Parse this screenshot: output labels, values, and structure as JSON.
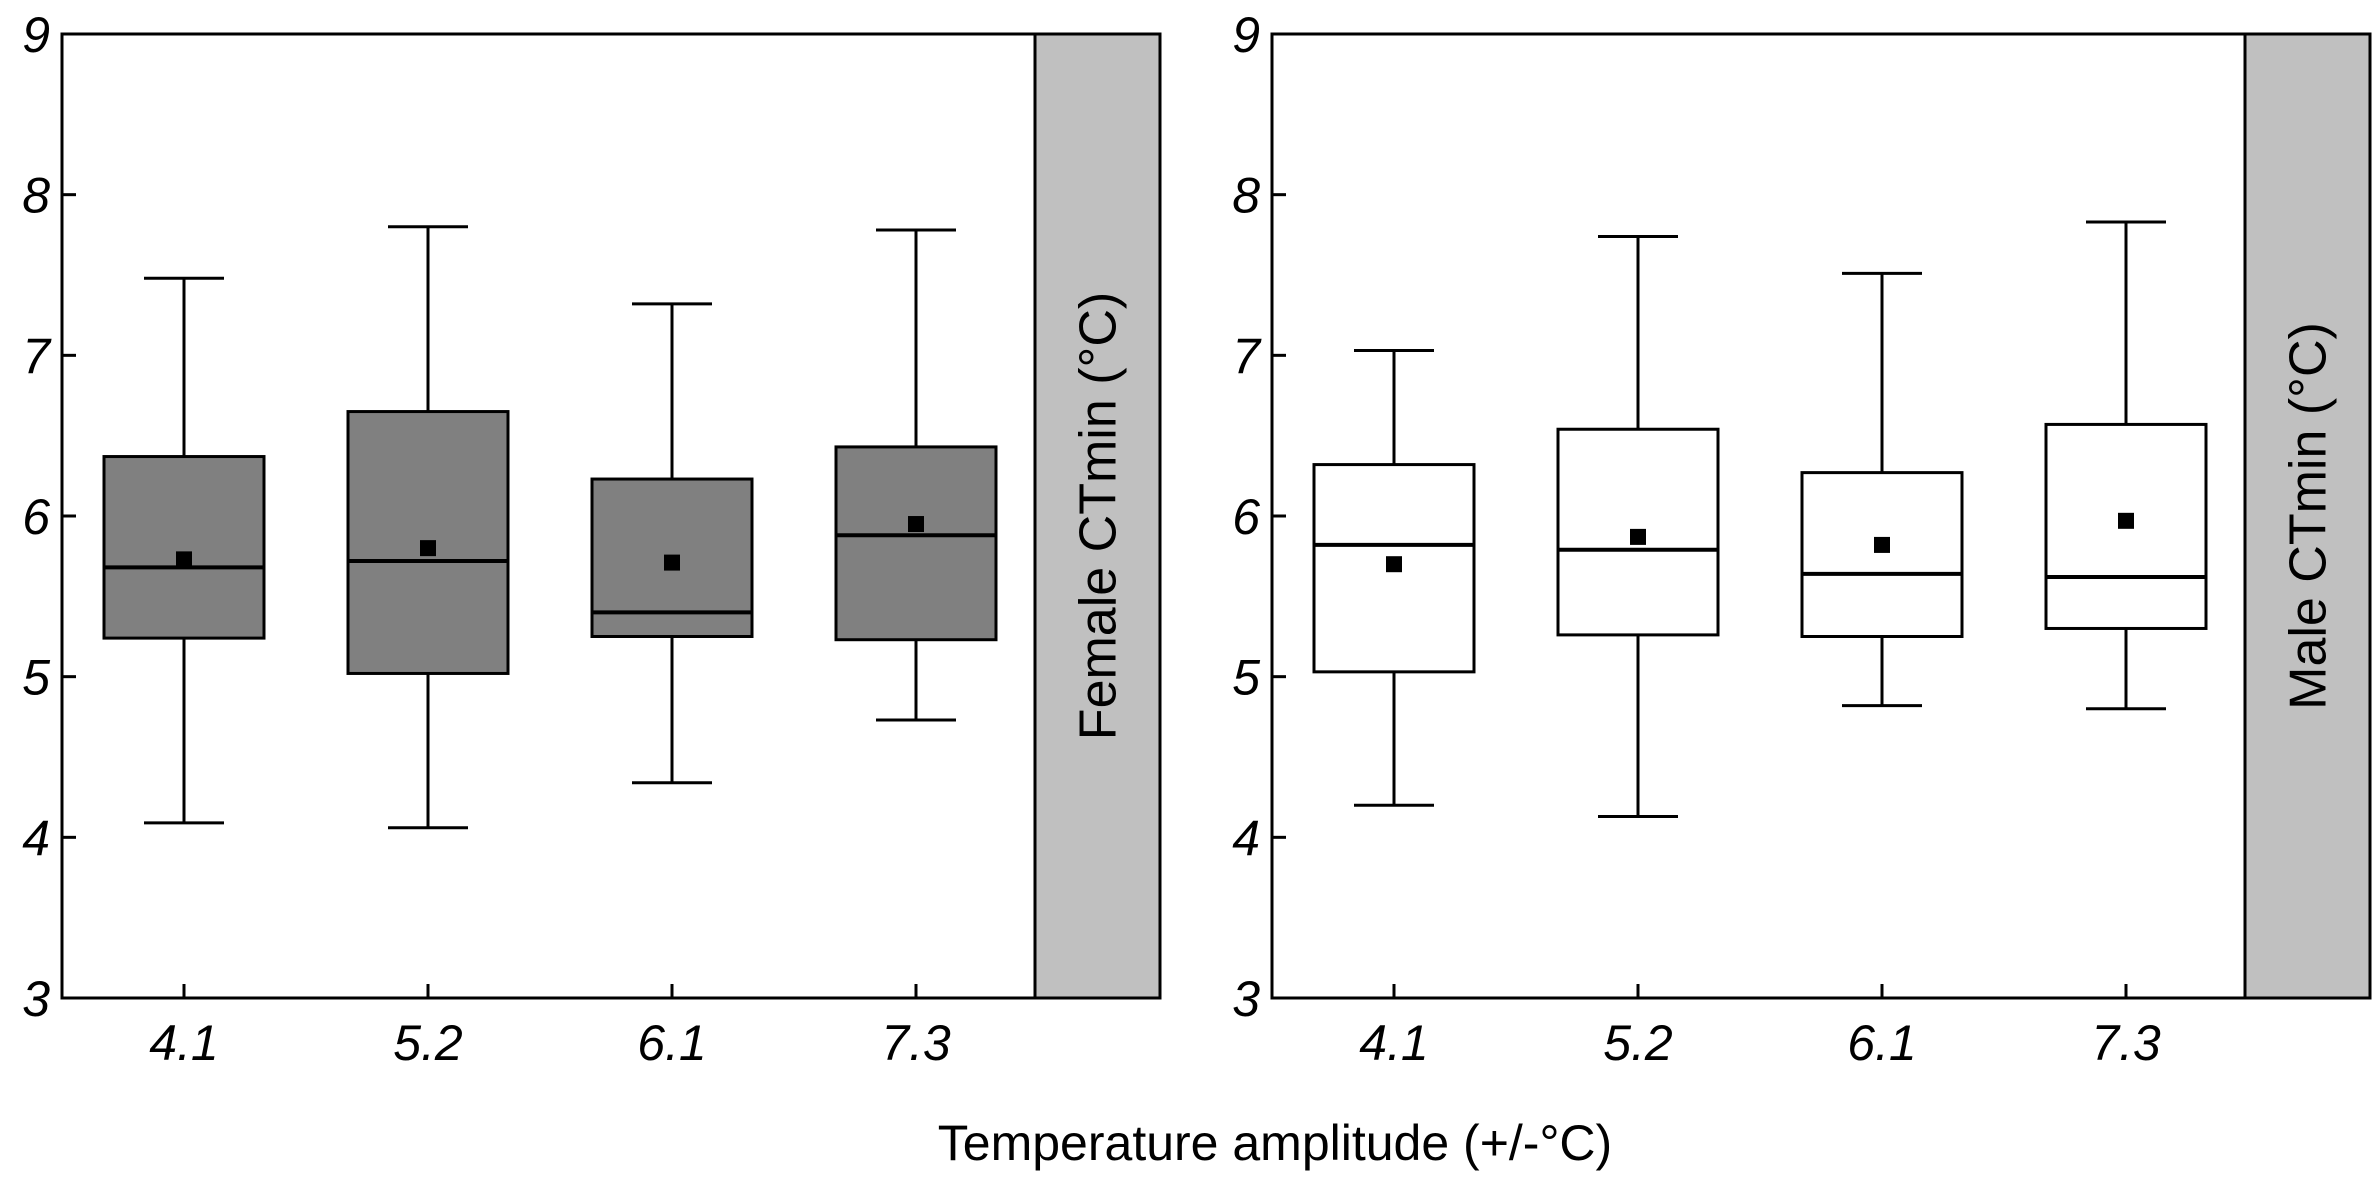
{
  "figure": {
    "xlabel": "Temperature amplitude (+/-°C)"
  },
  "chart_data": [
    {
      "type": "boxplot",
      "panel": "Female",
      "strip_label": "Female CTmin (°C)",
      "strip_color": "#c0c0c0",
      "box_color": "#808080",
      "xlabel": "Temperature amplitude (+/-°C)",
      "ylabel": "Female CTmin (°C)",
      "ylim": [
        3,
        9
      ],
      "yticks": [
        "3",
        "4",
        "5",
        "6",
        "7",
        "8",
        "9"
      ],
      "categories": [
        "4.1",
        "5.2",
        "6.1",
        "7.3"
      ],
      "boxes": [
        {
          "min": 4.09,
          "q1": 5.24,
          "median": 5.68,
          "q3": 6.37,
          "max": 7.48,
          "mean": 5.73
        },
        {
          "min": 4.06,
          "q1": 5.02,
          "median": 5.72,
          "q3": 6.65,
          "max": 7.8,
          "mean": 5.8
        },
        {
          "min": 4.34,
          "q1": 5.25,
          "median": 5.4,
          "q3": 6.23,
          "max": 7.32,
          "mean": 5.71
        },
        {
          "min": 4.73,
          "q1": 5.23,
          "median": 5.88,
          "q3": 6.43,
          "max": 7.78,
          "mean": 5.95
        }
      ]
    },
    {
      "type": "boxplot",
      "panel": "Male",
      "strip_label": "Male CTmin (°C)",
      "strip_color": "#c0c0c0",
      "box_color": "#ffffff",
      "xlabel": "Temperature amplitude (+/-°C)",
      "ylabel": "Male CTmin (°C)",
      "ylim": [
        3,
        9
      ],
      "yticks": [
        "3",
        "4",
        "5",
        "6",
        "7",
        "8",
        "9"
      ],
      "categories": [
        "4.1",
        "5.2",
        "6.1",
        "7.3"
      ],
      "boxes": [
        {
          "min": 4.2,
          "q1": 5.03,
          "median": 5.82,
          "q3": 6.32,
          "max": 7.03,
          "mean": 5.7
        },
        {
          "min": 4.13,
          "q1": 5.26,
          "median": 5.79,
          "q3": 6.54,
          "max": 7.74,
          "mean": 5.87
        },
        {
          "min": 4.82,
          "q1": 5.25,
          "median": 5.64,
          "q3": 6.27,
          "max": 7.51,
          "mean": 5.82
        },
        {
          "min": 4.8,
          "q1": 5.3,
          "median": 5.62,
          "q3": 6.57,
          "max": 7.83,
          "mean": 5.97
        }
      ]
    }
  ]
}
